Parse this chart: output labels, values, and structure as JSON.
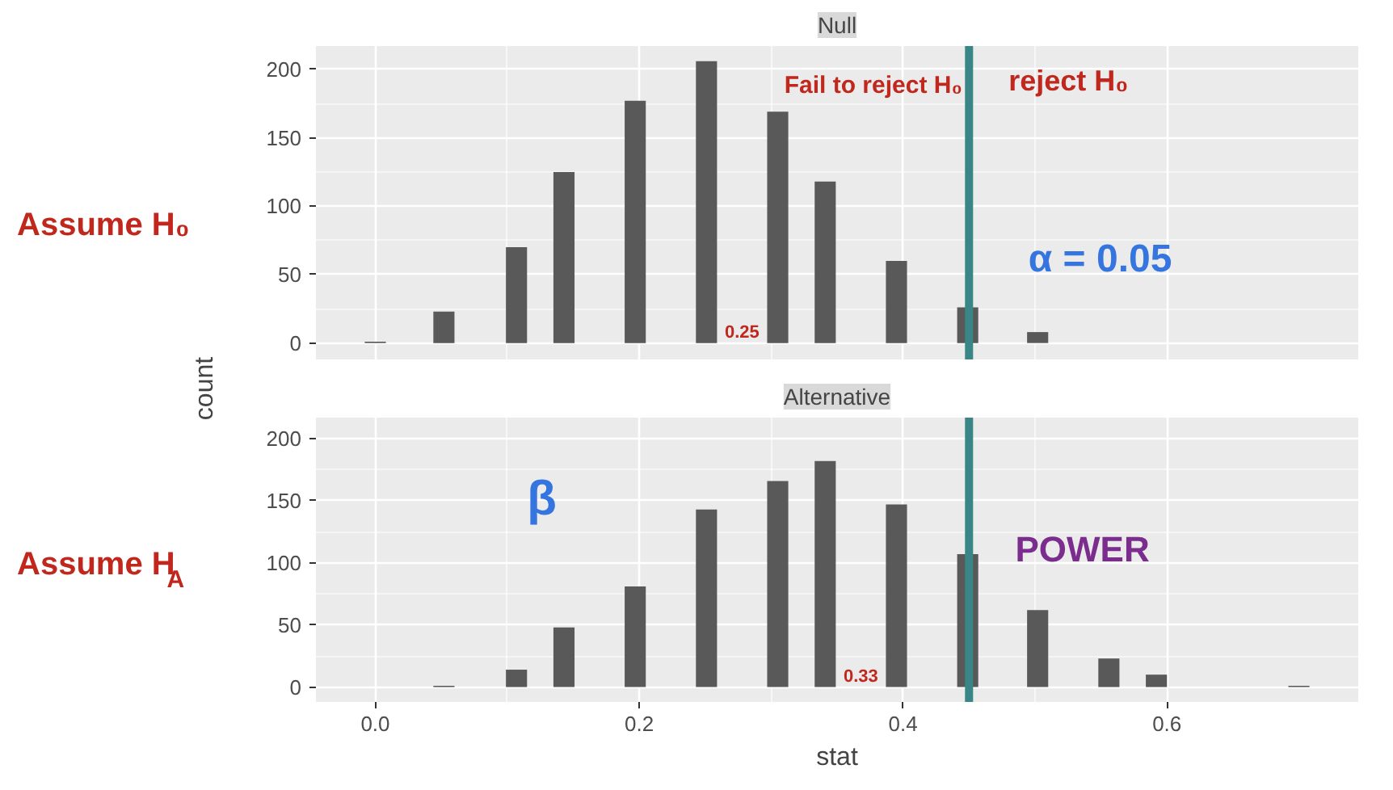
{
  "chart_data": [
    {
      "type": "bar",
      "title": "Null",
      "ylabel": "count",
      "x": [
        0.0,
        0.052,
        0.107,
        0.143,
        0.197,
        0.251,
        0.305,
        0.341,
        0.395,
        0.449,
        0.502
      ],
      "values": [
        1,
        23,
        70,
        125,
        177,
        206,
        169,
        118,
        60,
        26,
        8
      ],
      "color": "#595959",
      "xlim": [
        -0.045,
        0.745
      ],
      "ylim": [
        -12,
        217
      ],
      "xticks": [
        0,
        0.2,
        0.4,
        0.6
      ],
      "yticks": [
        0,
        50,
        100,
        150,
        200
      ],
      "grid": true,
      "tick_labels": "y",
      "ref_lines": [
        {
          "axis": "x",
          "value": 0.45,
          "color": "#3a8585"
        }
      ],
      "annotations": [
        "Assume H₀",
        "Fail to reject H₀",
        "reject H₀",
        "α = 0.05",
        "0.25"
      ]
    },
    {
      "type": "bar",
      "title": "Alternative",
      "xlabel": "stat",
      "x": [
        0.052,
        0.107,
        0.143,
        0.197,
        0.251,
        0.305,
        0.341,
        0.395,
        0.449,
        0.502,
        0.556,
        0.592,
        0.7
      ],
      "values": [
        1,
        14,
        48,
        81,
        143,
        166,
        182,
        147,
        107,
        62,
        23,
        10,
        1
      ],
      "color": "#595959",
      "xlim": [
        -0.045,
        0.745
      ],
      "ylim": [
        -12,
        217
      ],
      "xticks": [
        {
          "value": 0,
          "label": "0.0"
        },
        0.2,
        0.4,
        0.6
      ],
      "yticks": [
        0,
        50,
        100,
        150,
        200
      ],
      "grid": true,
      "ref_lines": [
        {
          "axis": "x",
          "value": 0.45,
          "color": "#3a8585"
        }
      ],
      "annotations": [
        "Assume H$_{A}$",
        "β",
        "POWER",
        "0.33"
      ]
    }
  ]
}
